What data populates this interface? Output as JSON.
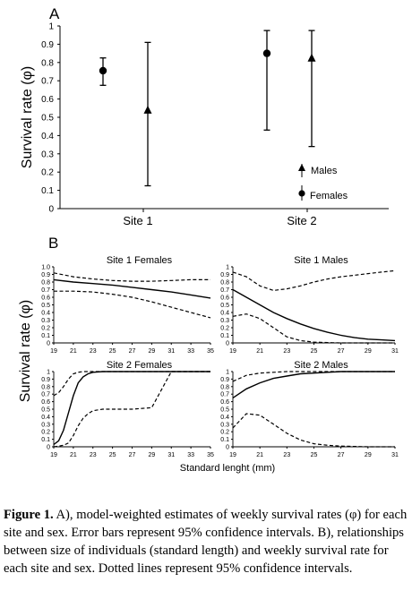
{
  "chart_data": [
    {
      "panel": "A",
      "type": "scatter",
      "ylabel": "Survival rate (φ)",
      "ylim": [
        0,
        1
      ],
      "yticks": [
        "0",
        "0.1",
        "0.2",
        "0.3",
        "0.4",
        "0.5",
        "0.6",
        "0.7",
        "0.8",
        "0.9",
        "1"
      ],
      "categories": [
        "Site 1",
        "Site 2"
      ],
      "series": [
        {
          "name": "Females",
          "marker": "circle",
          "values": [
            0.755,
            0.85
          ],
          "lower": [
            0.675,
            0.43
          ],
          "upper": [
            0.825,
            0.975
          ]
        },
        {
          "name": "Males",
          "marker": "triangle",
          "values": [
            0.54,
            0.825
          ],
          "lower": [
            0.125,
            0.34
          ],
          "upper": [
            0.91,
            0.975
          ]
        }
      ],
      "legend_position": "bottom-right"
    },
    {
      "panel": "B",
      "type": "line",
      "ylabel": "Survival rate (φ)",
      "xlabel": "Standard lenght (mm)",
      "subplots": [
        {
          "title": "Site 1 Females",
          "xticks": [
            "19",
            "21",
            "23",
            "25",
            "27",
            "29",
            "31",
            "33",
            "35"
          ],
          "yticks": [
            "0",
            "0.1",
            "0.2",
            "0.3",
            "0.4",
            "0.5",
            "0.6",
            "0.7",
            "0.8",
            "0.9",
            "1.0"
          ],
          "xlim": [
            19,
            35
          ],
          "ylim": [
            0,
            1
          ],
          "x": [
            19,
            21,
            23,
            25,
            27,
            29,
            31,
            33,
            35
          ],
          "estimate": [
            0.83,
            0.8,
            0.78,
            0.76,
            0.73,
            0.7,
            0.67,
            0.63,
            0.59
          ],
          "lower": [
            0.68,
            0.68,
            0.67,
            0.64,
            0.6,
            0.54,
            0.47,
            0.4,
            0.33
          ],
          "upper": [
            0.92,
            0.87,
            0.84,
            0.82,
            0.81,
            0.81,
            0.82,
            0.83,
            0.83
          ]
        },
        {
          "title": "Site 1 Males",
          "xticks": [
            "19",
            "21",
            "23",
            "25",
            "27",
            "29",
            "31"
          ],
          "yticks": [
            "0",
            "0.1",
            "0.2",
            "0.3",
            "0.4",
            "0.5",
            "0.6",
            "0.7",
            "0.8",
            "0.9",
            "1"
          ],
          "xlim": [
            19,
            31
          ],
          "ylim": [
            0,
            1
          ],
          "x": [
            19,
            20,
            21,
            22,
            23,
            24,
            25,
            26,
            27,
            28,
            29,
            30,
            31
          ],
          "estimate": [
            0.7,
            0.6,
            0.5,
            0.4,
            0.32,
            0.25,
            0.19,
            0.14,
            0.1,
            0.07,
            0.05,
            0.04,
            0.03
          ],
          "lower": [
            0.35,
            0.38,
            0.32,
            0.2,
            0.08,
            0.03,
            0.01,
            0.005,
            0.0,
            0.0,
            0.0,
            0.0,
            0.0
          ],
          "upper": [
            0.93,
            0.87,
            0.75,
            0.69,
            0.71,
            0.75,
            0.8,
            0.84,
            0.87,
            0.89,
            0.91,
            0.93,
            0.95
          ]
        },
        {
          "title": "Site 2 Females",
          "xticks": [
            "19",
            "21",
            "23",
            "25",
            "27",
            "29",
            "31",
            "33",
            "35"
          ],
          "yticks": [
            "0",
            "0.1",
            "0.2",
            "0.3",
            "0.4",
            "0.5",
            "0.6",
            "0.7",
            "0.8",
            "0.9",
            "1"
          ],
          "xlim": [
            19,
            35
          ],
          "ylim": [
            0,
            1
          ],
          "x": [
            19,
            19.5,
            20,
            20.5,
            21,
            21.5,
            22,
            22.5,
            23,
            24,
            25,
            27,
            29,
            31,
            33,
            35
          ],
          "estimate": [
            0.03,
            0.08,
            0.22,
            0.45,
            0.68,
            0.85,
            0.93,
            0.97,
            0.99,
            1.0,
            1.0,
            1.0,
            1.0,
            1.0,
            1.0,
            1.0
          ],
          "lower": [
            0.0,
            0.01,
            0.02,
            0.05,
            0.15,
            0.28,
            0.38,
            0.44,
            0.48,
            0.5,
            0.5,
            0.5,
            0.52,
            1.0,
            1.0,
            1.0
          ],
          "upper": [
            0.68,
            0.72,
            0.8,
            0.9,
            0.97,
            0.99,
            1.0,
            1.0,
            1.0,
            1.0,
            1.0,
            1.0,
            1.0,
            1.0,
            1.0,
            1.0
          ]
        },
        {
          "title": "Site 2 Males",
          "xticks": [
            "19",
            "21",
            "23",
            "25",
            "27",
            "29",
            "31"
          ],
          "yticks": [
            "0",
            "0.1",
            "0.2",
            "0.3",
            "0.4",
            "0.5",
            "0.6",
            "0.7",
            "0.8",
            "0.9",
            "1"
          ],
          "xlim": [
            19,
            31
          ],
          "ylim": [
            0,
            1
          ],
          "x": [
            19,
            20,
            21,
            22,
            23,
            24,
            25,
            26,
            27,
            29,
            31
          ],
          "estimate": [
            0.65,
            0.77,
            0.85,
            0.91,
            0.94,
            0.97,
            0.98,
            0.99,
            1.0,
            1.0,
            1.0
          ],
          "lower": [
            0.25,
            0.44,
            0.42,
            0.3,
            0.18,
            0.09,
            0.04,
            0.02,
            0.01,
            0.0,
            0.0
          ],
          "upper": [
            0.87,
            0.95,
            0.98,
            0.99,
            1.0,
            1.0,
            1.0,
            1.0,
            1.0,
            1.0,
            1.0
          ]
        }
      ]
    }
  ],
  "caption": {
    "label": "Figure 1.",
    "text": "A), model-weighted estimates of weekly survival rates (φ) for each site and sex. Error bars represent 95% confidence intervals. B), relationships between size of individuals (standard length) and weekly survival rate for each site and sex. Dotted lines represent 95% confidence intervals."
  }
}
